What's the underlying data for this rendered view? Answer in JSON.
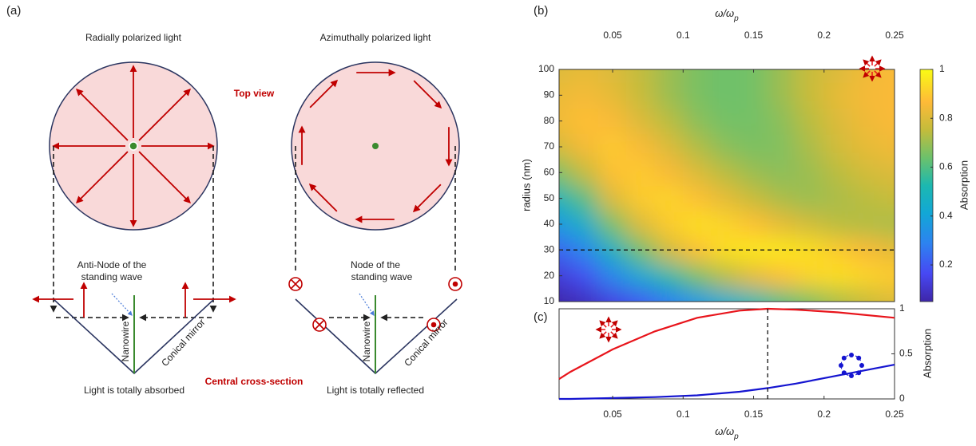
{
  "diagram": {
    "panel": "(a)",
    "left_title": "Radially polarized light",
    "right_title": "Azimuthally polarized light",
    "top_view": "Top view",
    "antinode": [
      "Anti-Node of the",
      "standing wave"
    ],
    "node": [
      "Node of the",
      "standing wave"
    ],
    "nanowire_left": "Nanowire",
    "nanowire_right": "Nanowire",
    "mirror_left": "Conical mirror",
    "mirror_right": "Conical mirror",
    "cross_section": "Central cross-section",
    "left_caption": "Light is totally absorbed",
    "right_caption": "Light is totally reflected"
  },
  "chart_data": [
    {
      "type": "heatmap",
      "panel": "(b)",
      "xlabel": {
        "text": "ω/ω",
        "sub": "p"
      },
      "ylabel": "radius (nm)",
      "colorbar_label": "Absorption",
      "colormap": "parula",
      "x": [
        0.01,
        0.03,
        0.05,
        0.07,
        0.09,
        0.11,
        0.13,
        0.15,
        0.17,
        0.19,
        0.21,
        0.23,
        0.25
      ],
      "y": [
        10,
        20,
        30,
        40,
        50,
        60,
        70,
        80,
        90,
        100
      ],
      "z": [
        [
          0.05,
          0.08,
          0.14,
          0.2,
          0.28,
          0.36,
          0.44,
          0.52,
          0.6,
          0.66,
          0.72,
          0.76,
          0.8
        ],
        [
          0.12,
          0.18,
          0.3,
          0.42,
          0.54,
          0.65,
          0.74,
          0.82,
          0.88,
          0.92,
          0.94,
          0.92,
          0.9
        ],
        [
          0.22,
          0.3,
          0.48,
          0.64,
          0.78,
          0.88,
          0.94,
          0.96,
          0.96,
          0.94,
          0.9,
          0.86,
          0.82
        ],
        [
          0.36,
          0.45,
          0.65,
          0.8,
          0.9,
          0.94,
          0.92,
          0.88,
          0.82,
          0.78,
          0.74,
          0.73,
          0.72
        ],
        [
          0.5,
          0.6,
          0.8,
          0.9,
          0.92,
          0.88,
          0.82,
          0.76,
          0.72,
          0.7,
          0.72,
          0.74,
          0.76
        ],
        [
          0.65,
          0.75,
          0.88,
          0.9,
          0.86,
          0.8,
          0.74,
          0.7,
          0.68,
          0.7,
          0.74,
          0.78,
          0.8
        ],
        [
          0.78,
          0.85,
          0.9,
          0.86,
          0.8,
          0.73,
          0.68,
          0.66,
          0.67,
          0.72,
          0.78,
          0.82,
          0.84
        ],
        [
          0.84,
          0.88,
          0.86,
          0.8,
          0.74,
          0.68,
          0.65,
          0.65,
          0.68,
          0.74,
          0.8,
          0.84,
          0.86
        ],
        [
          0.83,
          0.85,
          0.82,
          0.76,
          0.7,
          0.66,
          0.64,
          0.65,
          0.7,
          0.76,
          0.82,
          0.85,
          0.86
        ],
        [
          0.8,
          0.82,
          0.8,
          0.75,
          0.7,
          0.66,
          0.64,
          0.65,
          0.7,
          0.76,
          0.8,
          0.84,
          0.86
        ]
      ],
      "xlim": [
        0.012,
        0.25
      ],
      "ylim": [
        10,
        100
      ],
      "xticks": [
        0.05,
        0.1,
        0.15,
        0.2,
        0.25
      ],
      "yticks": [
        10,
        20,
        30,
        40,
        50,
        60,
        70,
        80,
        90,
        100
      ],
      "clim": [
        0.05,
        1
      ],
      "cticks": [
        0.2,
        0.4,
        0.6,
        0.8,
        1
      ],
      "hline": 30
    },
    {
      "type": "line",
      "panel": "(c)",
      "xlabel": {
        "text": "ω/ω",
        "sub": "p"
      },
      "ylabel": "Absorption",
      "x": [
        0.012,
        0.02,
        0.05,
        0.08,
        0.11,
        0.14,
        0.16,
        0.18,
        0.21,
        0.25
      ],
      "series": [
        {
          "color": "#e8141b",
          "values": [
            0.22,
            0.3,
            0.55,
            0.75,
            0.9,
            0.98,
            1.0,
            0.99,
            0.96,
            0.9
          ]
        },
        {
          "color": "#1414d0",
          "values": [
            0.0,
            0.0,
            0.01,
            0.02,
            0.04,
            0.08,
            0.12,
            0.17,
            0.26,
            0.38
          ]
        }
      ],
      "xlim": [
        0.012,
        0.25
      ],
      "ylim": [
        0,
        1
      ],
      "xticks": [
        0.05,
        0.1,
        0.15,
        0.2,
        0.25
      ],
      "yticks": [
        0,
        0.5,
        1
      ],
      "vline": 0.16
    }
  ]
}
